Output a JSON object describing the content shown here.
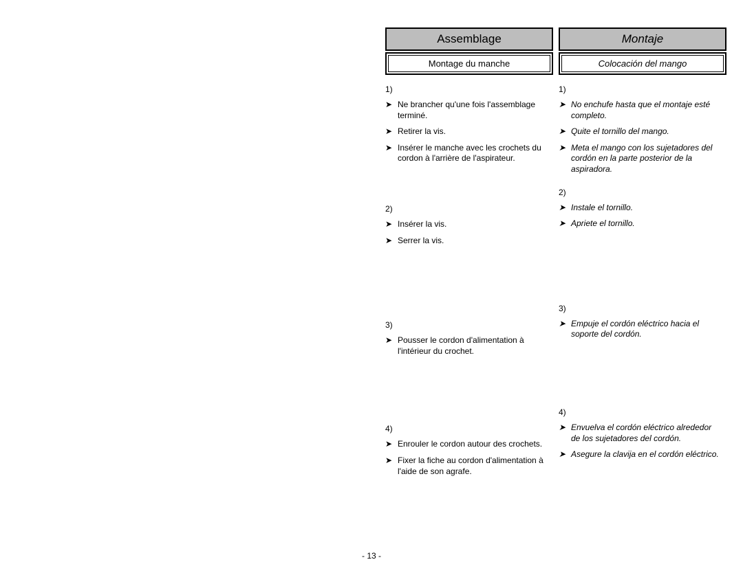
{
  "page_number": "- 13 -",
  "arrow_glyph": "➤",
  "left": {
    "main_heading": "Assemblage",
    "sub_heading": "Montage du manche",
    "sections": [
      {
        "num": "1)",
        "steps": [
          "Ne brancher qu'une fois l'assemblage terminé.",
          "Retirer la vis.",
          "Insérer le manche avec les crochets du cordon à l'arrière de l'aspirateur."
        ],
        "spacer": "sm"
      },
      {
        "num": "2)",
        "steps": [
          "Insérer la vis.",
          "Serrer la vis."
        ],
        "spacer": "lg"
      },
      {
        "num": "3)",
        "steps": [
          "Pousser le cordon d'alimentation à l'intérieur du crochet."
        ],
        "spacer": "md"
      },
      {
        "num": "4)",
        "steps": [
          "Enrouler le cordon autour des crochets.",
          "Fixer la fiche au cordon d'alimentation à l'aide de son agrafe."
        ],
        "spacer": ""
      }
    ]
  },
  "right": {
    "main_heading": "Montaje",
    "sub_heading": "Colocación del mango",
    "sections": [
      {
        "num": "1)",
        "steps": [
          "No enchufe hasta que el montaje esté completo.",
          "Quite el tornillo del mango.",
          "Meta el mango con los sujetadores del cordón en la parte posterior de la aspiradora."
        ],
        "spacer": ""
      },
      {
        "num": "2)",
        "steps": [
          "Instale el tornillo.",
          "Apriete el tornillo."
        ],
        "spacer": "lg"
      },
      {
        "num": "3)",
        "steps": [
          "Empuje el cordón eléctrico hacia el soporte del cordón."
        ],
        "spacer": "md"
      },
      {
        "num": "4)",
        "steps": [
          "Envuelva el cordón eléctrico alrededor de los sujetadores del cordón.",
          "Asegure la clavija en el cordón eléctrico."
        ],
        "spacer": ""
      }
    ]
  }
}
